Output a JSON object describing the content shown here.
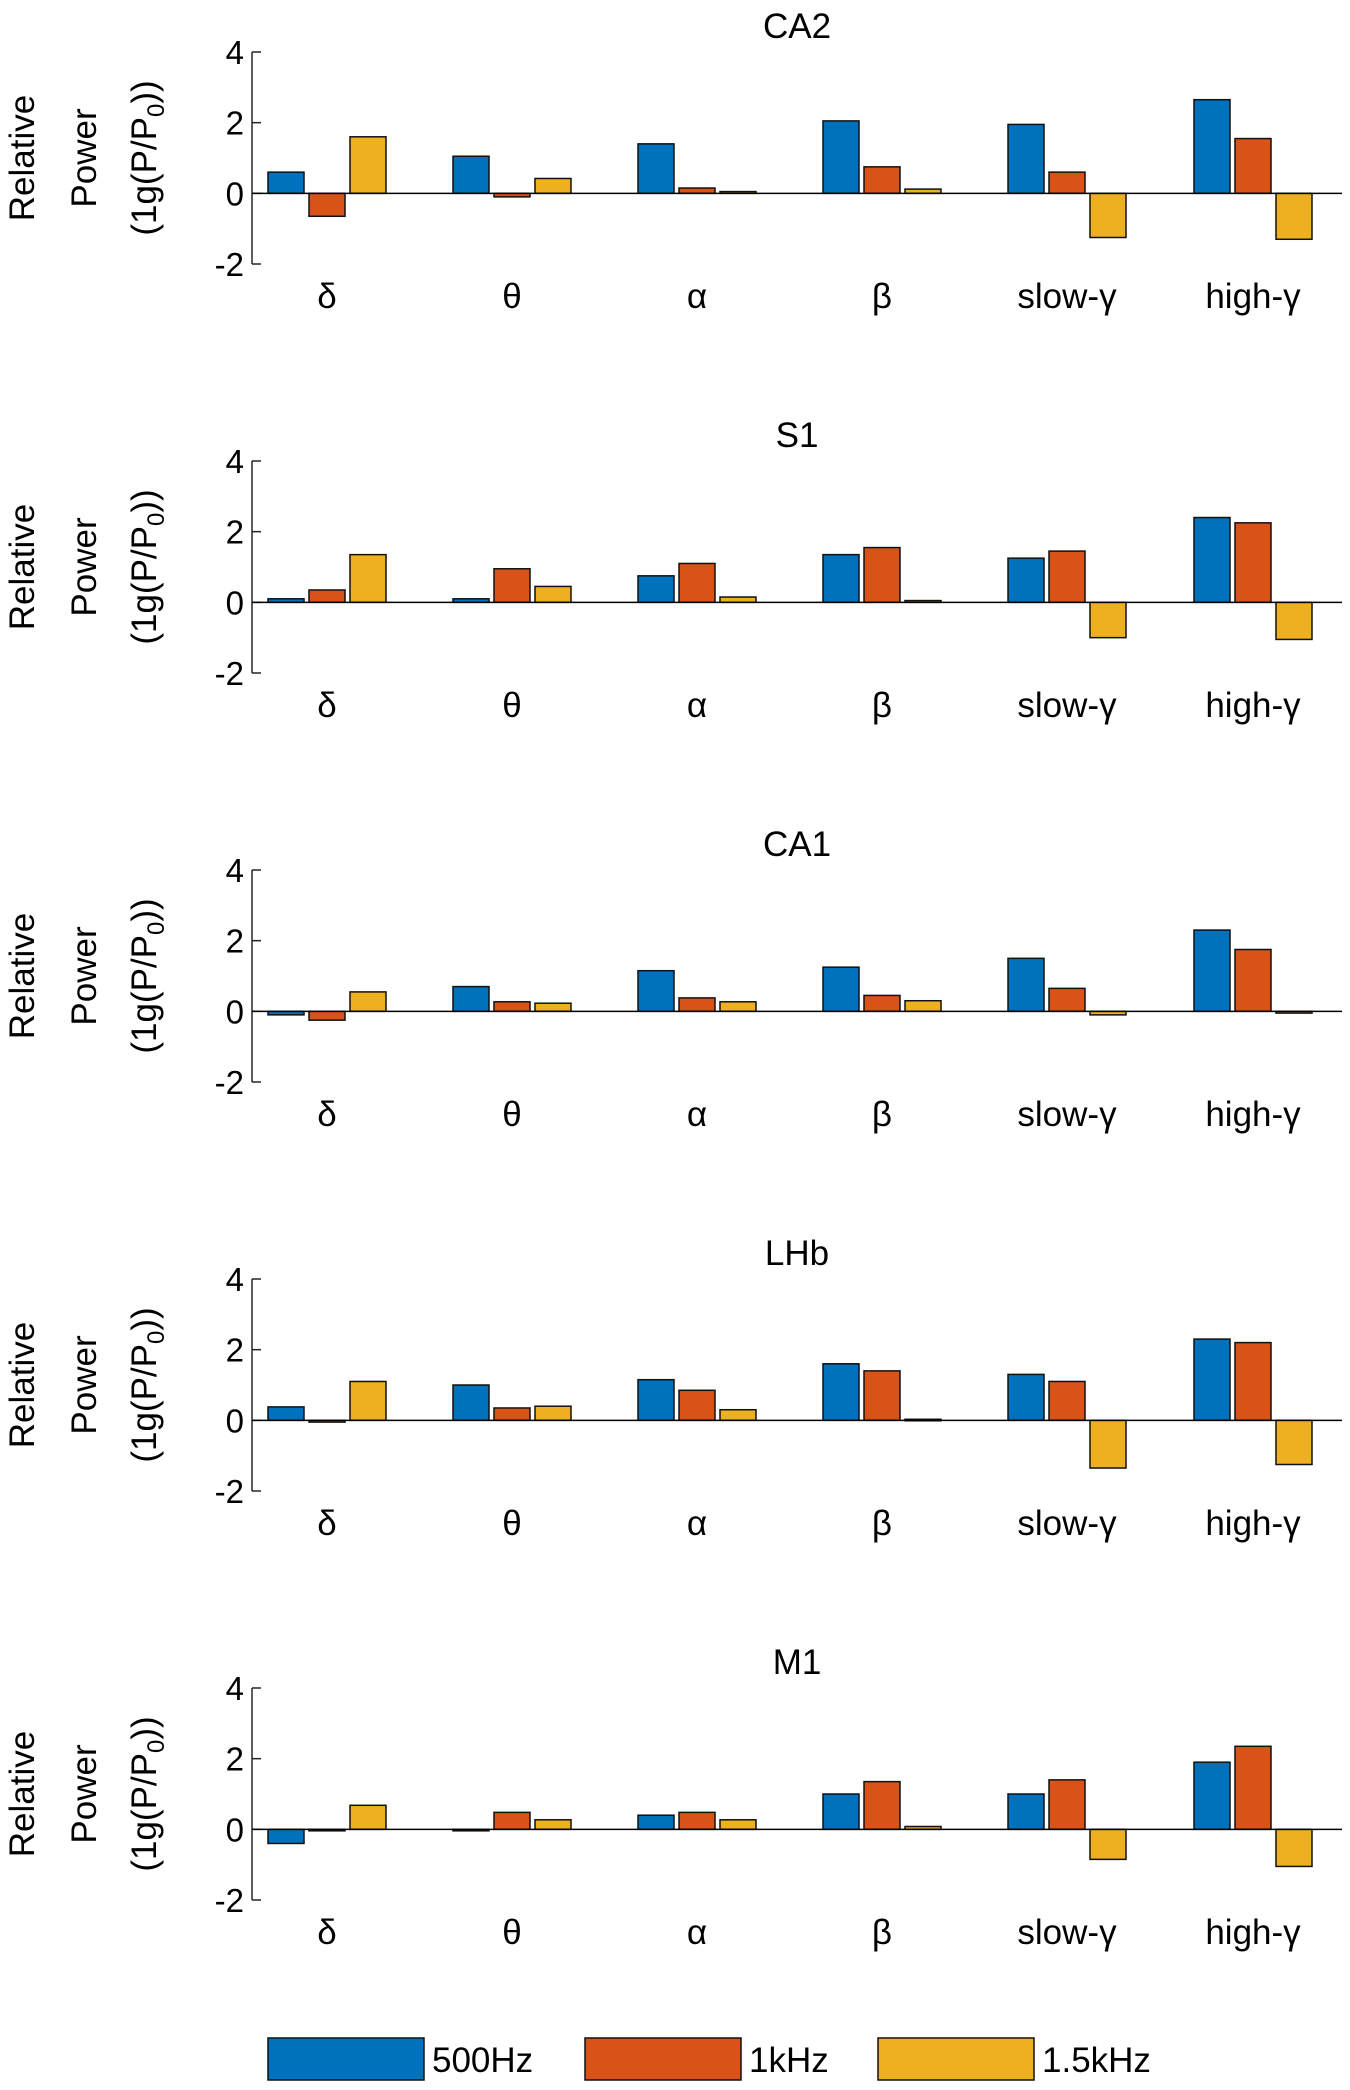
{
  "y_axis_label": {
    "line1": "Relative",
    "line2": "Power",
    "line3_prefix": "(1g(P/P",
    "line3_sub": "0",
    "line3_suffix": "))"
  },
  "legend": [
    {
      "label": "500Hz",
      "color": "#0072BD"
    },
    {
      "label": "1kHz",
      "color": "#D95319"
    },
    {
      "label": "1.5kHz",
      "color": "#EDB120"
    }
  ],
  "chart_data": [
    {
      "type": "bar",
      "title": "CA2",
      "categories": [
        "δ",
        "θ",
        "α",
        "β",
        "slow-γ",
        "high-γ"
      ],
      "ylim": [
        -2,
        4
      ],
      "yticks": [
        "4",
        "2",
        "0",
        "-2"
      ],
      "series": [
        {
          "name": "500Hz",
          "values": [
            0.6,
            1.05,
            1.4,
            2.05,
            1.95,
            2.65
          ]
        },
        {
          "name": "1kHz",
          "values": [
            -0.65,
            -0.1,
            0.15,
            0.75,
            0.6,
            1.55
          ]
        },
        {
          "name": "1.5kHz",
          "values": [
            1.6,
            0.42,
            0.05,
            0.12,
            -1.25,
            -1.3
          ]
        }
      ]
    },
    {
      "type": "bar",
      "title": "S1",
      "categories": [
        "δ",
        "θ",
        "α",
        "β",
        "slow-γ",
        "high-γ"
      ],
      "ylim": [
        -2,
        4
      ],
      "yticks": [
        "4",
        "2",
        "0",
        "-2"
      ],
      "series": [
        {
          "name": "500Hz",
          "values": [
            0.1,
            0.1,
            0.75,
            1.35,
            1.25,
            2.4
          ]
        },
        {
          "name": "1kHz",
          "values": [
            0.35,
            0.95,
            1.1,
            1.55,
            1.45,
            2.25
          ]
        },
        {
          "name": "1.5kHz",
          "values": [
            1.35,
            0.45,
            0.15,
            0.05,
            -1.0,
            -1.05
          ]
        }
      ]
    },
    {
      "type": "bar",
      "title": "CA1",
      "categories": [
        "δ",
        "θ",
        "α",
        "β",
        "slow-γ",
        "high-γ"
      ],
      "ylim": [
        -2,
        4
      ],
      "yticks": [
        "4",
        "2",
        "0",
        "-2"
      ],
      "series": [
        {
          "name": "500Hz",
          "values": [
            -0.1,
            0.7,
            1.15,
            1.25,
            1.5,
            2.3
          ]
        },
        {
          "name": "1kHz",
          "values": [
            -0.25,
            0.27,
            0.38,
            0.45,
            0.65,
            1.75
          ]
        },
        {
          "name": "1.5kHz",
          "values": [
            0.55,
            0.23,
            0.27,
            0.3,
            -0.1,
            -0.05
          ]
        }
      ]
    },
    {
      "type": "bar",
      "title": "LHb",
      "categories": [
        "δ",
        "θ",
        "α",
        "β",
        "slow-γ",
        "high-γ"
      ],
      "ylim": [
        -2,
        4
      ],
      "yticks": [
        "4",
        "2",
        "0",
        "-2"
      ],
      "series": [
        {
          "name": "500Hz",
          "values": [
            0.38,
            1.0,
            1.15,
            1.6,
            1.3,
            2.3
          ]
        },
        {
          "name": "1kHz",
          "values": [
            -0.05,
            0.35,
            0.85,
            1.4,
            1.1,
            2.2
          ]
        },
        {
          "name": "1.5kHz",
          "values": [
            1.1,
            0.4,
            0.3,
            0.03,
            -1.35,
            -1.25
          ]
        }
      ]
    },
    {
      "type": "bar",
      "title": "M1",
      "categories": [
        "δ",
        "θ",
        "α",
        "β",
        "slow-γ",
        "high-γ"
      ],
      "ylim": [
        -2,
        4
      ],
      "yticks": [
        "4",
        "2",
        "0",
        "-2"
      ],
      "series": [
        {
          "name": "500Hz",
          "values": [
            -0.4,
            -0.03,
            0.4,
            1.0,
            1.0,
            1.9
          ]
        },
        {
          "name": "1kHz",
          "values": [
            -0.03,
            0.48,
            0.48,
            1.35,
            1.4,
            2.35
          ]
        },
        {
          "name": "1.5kHz",
          "values": [
            0.68,
            0.27,
            0.27,
            0.08,
            -0.85,
            -1.05
          ]
        }
      ]
    }
  ]
}
